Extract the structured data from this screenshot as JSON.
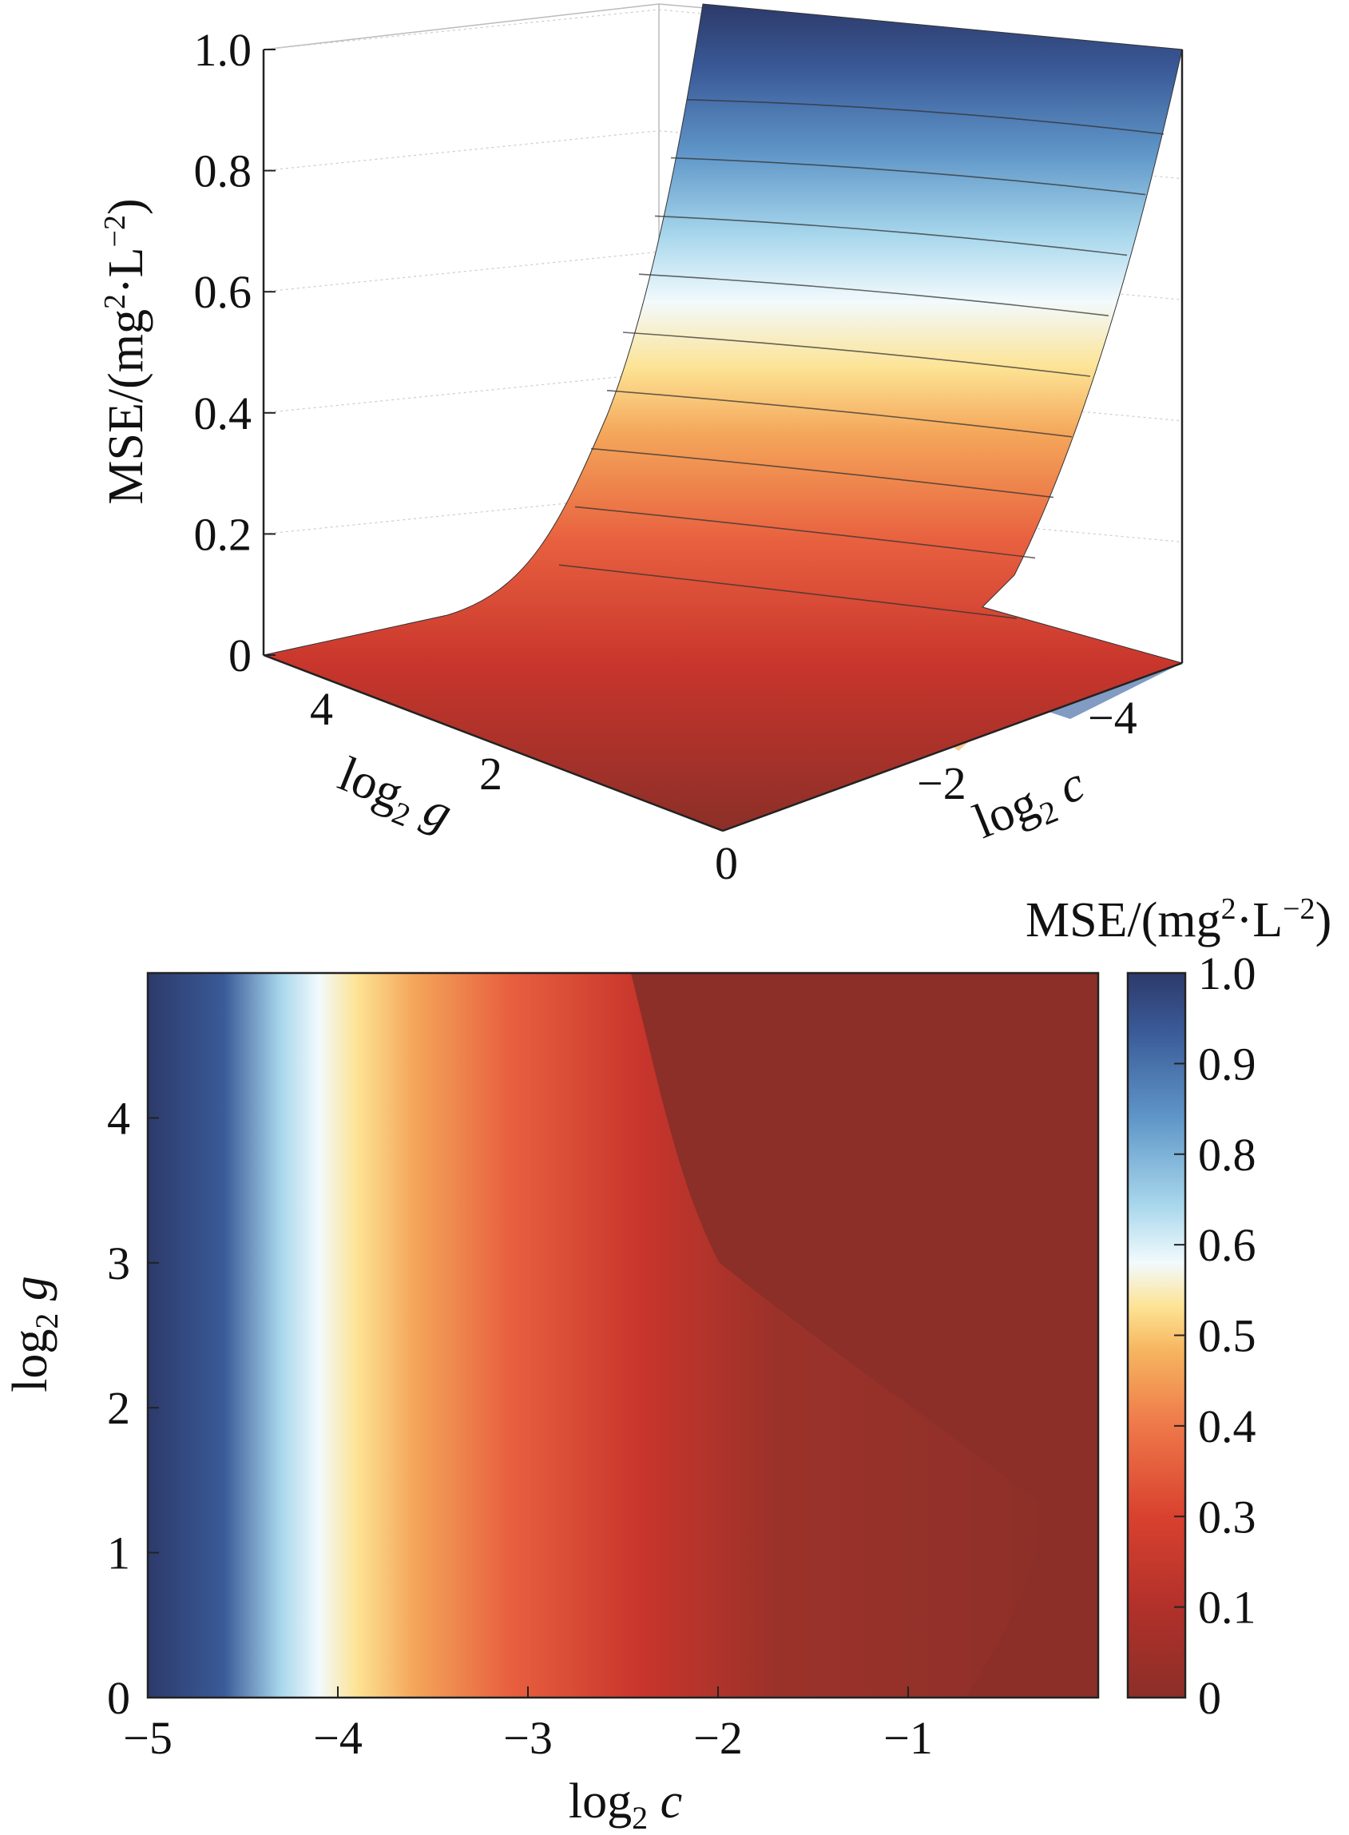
{
  "chart_data": [
    {
      "type": "surface",
      "zlabel": "MSE/(mg²·L⁻²)",
      "xlabel": "log₂ g",
      "ylabel": "log₂ c",
      "z_ticks": [
        "0",
        "0.2",
        "0.4",
        "0.6",
        "0.8",
        "1.0"
      ],
      "x_ticks": [
        "4",
        "2",
        "0"
      ],
      "y_ticks": [
        "−4",
        "−2"
      ],
      "zlim": [
        0,
        1.0
      ],
      "x_range": [
        0,
        5
      ],
      "y_range": [
        -5,
        0
      ],
      "colormap": [
        "#8b2f28",
        "#c8352c",
        "#e8603f",
        "#f4a65a",
        "#fde394",
        "#f2fafd",
        "#a8d7ec",
        "#5f96c8",
        "#3a5a98",
        "#2d3a6a"
      ],
      "surface_profile": {
        "log2_c": [
          -5,
          -4.5,
          -4,
          -3.5,
          -3,
          -2.5,
          -2,
          -1.5,
          -1,
          -0.5,
          0
        ],
        "mse": [
          1.0,
          0.78,
          0.52,
          0.3,
          0.16,
          0.09,
          0.05,
          0.03,
          0.02,
          0.015,
          0.01
        ]
      },
      "grid": true
    },
    {
      "type": "heatmap",
      "colorbar_title": "MSE/(mg²·L⁻²)",
      "xlabel": "log₂ c",
      "ylabel": "log₂ g",
      "x_ticks": [
        "−5",
        "−4",
        "−3",
        "−2",
        "−1"
      ],
      "y_ticks": [
        "0",
        "1",
        "2",
        "3",
        "4"
      ],
      "xlim": [
        -5,
        0
      ],
      "ylim": [
        0,
        5
      ],
      "colorbar_ticks": [
        "0",
        "0.1",
        "0.3",
        "0.4",
        "0.5",
        "0.6",
        "0.8",
        "0.9",
        "1.0"
      ],
      "colorbar_range": [
        0,
        1.0
      ],
      "colormap": [
        "#8b2f28",
        "#c8352c",
        "#e8603f",
        "#f4a65a",
        "#fde394",
        "#f2fafd",
        "#a8d7ec",
        "#5f96c8",
        "#3a5a98",
        "#2d3a6a"
      ],
      "mse_profile": {
        "log2_c": [
          -5,
          -4.5,
          -4.2,
          -4,
          -3.5,
          -3,
          -2.5,
          -2,
          -1.5,
          -1,
          -0.5,
          0
        ],
        "mse": [
          0.95,
          0.8,
          0.58,
          0.48,
          0.3,
          0.18,
          0.1,
          0.06,
          0.04,
          0.03,
          0.02,
          0.02
        ]
      }
    }
  ]
}
